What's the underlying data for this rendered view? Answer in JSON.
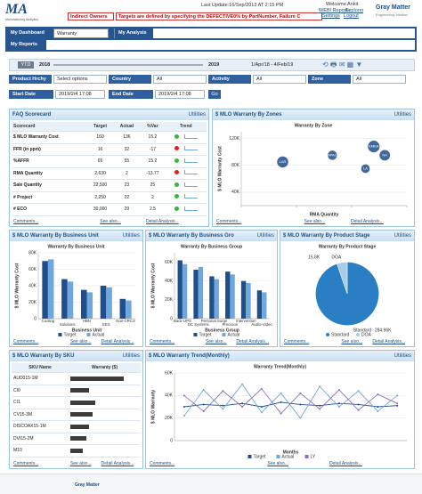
{
  "header": {
    "logo": "MA",
    "logo_sub": "Manufacturing Analytics",
    "alert_label": "Indirect Owners",
    "alert_text": "Targets are defined by specifying the DEFECTIVE0% by PartNumber, Failure C",
    "last_update": "Last Update:16/Sep/2013 AT 2:15 PM",
    "welcome": "Welcome Ankit",
    "links": [
      "WEBI Reports",
      "Explorer",
      "Settings",
      "Logout"
    ],
    "brand": "Gray Matter",
    "brand_sub": "Engineering Intuition"
  },
  "nav": {
    "tabs": [
      "My Dashboard",
      "My Analysis",
      "My Reports"
    ],
    "dropdown": "Warranty"
  },
  "timeline": {
    "preset": "YTD",
    "years": [
      "2018",
      "2019"
    ],
    "range": "1/Apr/18 - 4/Feb/19"
  },
  "filters": [
    {
      "label": "Product Hrchy",
      "value": "Select options"
    },
    {
      "label": "Country",
      "value": "All"
    },
    {
      "label": "Activity",
      "value": "All"
    },
    {
      "label": "Zone",
      "value": "All"
    }
  ],
  "dates": {
    "start_label": "Start Date",
    "start": "2019/2/4 17:08",
    "end_label": "End Date",
    "end": "2019/2/4 17:08",
    "go": "Go"
  },
  "utilities": "Utilities",
  "panel_links": [
    "Comments...",
    "See also...",
    "Detail Analysis..."
  ],
  "panels": [
    "FAQ Scorecard",
    "$ MLO Warranty By Zones",
    "$ MLO Warranty By Business Unit",
    "$ MLO Warranty By Business Gro",
    "$ MLO Warranty By Product Stage",
    "$ MLO Warranty By SKU",
    "$ MLO Warranty Trend(Monthly)"
  ],
  "scorecard": {
    "columns": [
      "Scorecard",
      "Target",
      "Actual",
      "%Var",
      "Trend"
    ],
    "rows": [
      [
        "$ MLO Warranty Cost",
        "160",
        "136",
        "15.2"
      ],
      [
        "FFR (in ppm)",
        "16",
        "32",
        "-17"
      ],
      [
        "%AFFR",
        "65",
        "55",
        "15.2"
      ],
      [
        "RMA Quantity",
        "2,630",
        "2",
        "-13.77"
      ],
      [
        "Sale Quantity",
        "22,500",
        "23",
        "25"
      ],
      [
        "# Project",
        "2,250",
        "22",
        "2"
      ],
      [
        "# ECO",
        "30,000",
        "29",
        "2.5"
      ]
    ],
    "status": [
      "#3cb43c",
      "#e02020",
      "#3cb43c",
      "#e02020",
      "#3cb43c",
      "#3cb43c",
      "#3cb43c"
    ]
  },
  "sku": {
    "columns": [
      "SKU Name",
      "Warranty ($)"
    ],
    "names": [
      "AUD015-1M",
      "CI0",
      "CI1",
      "CV15-3M",
      "DISCOAX15-1M",
      "DVI15-2M",
      "M10"
    ],
    "values": [
      85,
      30,
      40,
      35,
      30,
      25,
      20
    ],
    "xlim": [
      0,
      100
    ],
    "color": "#3c3c3c"
  },
  "chart_data": [
    {
      "type": "bubble",
      "title": "Warranty By Zone",
      "x_label": "RMA Quantity",
      "y_label": "$ MLO Warranty Cost",
      "labels": [
        "LAR",
        "APAC",
        "EMEA",
        "NA",
        "LA"
      ],
      "x": [
        150,
        330,
        480,
        520,
        450
      ],
      "values": [
        85000,
        95000,
        108000,
        95000,
        75000
      ],
      "sizes": [
        20,
        14,
        22,
        18,
        12
      ],
      "color": "#1f4e8c",
      "xlim": [
        0,
        600
      ],
      "xticks": [
        0,
        200,
        400,
        600
      ],
      "ylim": [
        20000,
        130000
      ],
      "yticks": [
        {
          "value": 40000,
          "label": "40K"
        },
        {
          "value": 80000,
          "label": "80K"
        },
        {
          "value": 120000,
          "label": "120K"
        }
      ]
    },
    {
      "type": "bar",
      "title": "Warranty By Business Unit",
      "x_label": "Business Unit",
      "y_label": "$ MLO Warranty Cost",
      "categories": [
        "Cooling",
        "Solutions",
        "HBN",
        "EES",
        "Non-CRCS"
      ],
      "series": [
        {
          "name": "Target",
          "color": "#1f4e8c",
          "values": [
            70000,
            48000,
            35000,
            40000,
            24000
          ]
        },
        {
          "name": "Actual",
          "color": "#6fa8dc",
          "values": [
            72000,
            45000,
            32000,
            38000,
            22000
          ]
        }
      ],
      "ylim": [
        0,
        80000
      ],
      "yticks": [
        0,
        {
          "value": 20000,
          "label": "20K"
        },
        {
          "value": 40000,
          "label": "40K"
        },
        {
          "value": 60000,
          "label": "60K"
        },
        {
          "value": 80000,
          "label": "80K"
        }
      ]
    },
    {
      "type": "bar",
      "title": "Warranty By Business Group",
      "x_label": "Business Group",
      "y_label": "$ MLO Warranty Cost",
      "categories": [
        "Back-UPS",
        "DC Systems",
        "Personal Surge",
        "Precision",
        "Intervention",
        "Audio-Video"
      ],
      "series": [
        {
          "name": "Target",
          "color": "#1f4e8c",
          "values": [
            62000,
            52000,
            45000,
            50000,
            40000,
            30000
          ]
        },
        {
          "name": "Actual",
          "color": "#6fa8dc",
          "values": [
            58000,
            55000,
            42000,
            47000,
            38000,
            28000
          ]
        }
      ],
      "ylim": [
        0,
        70000
      ],
      "yticks": [
        0,
        {
          "value": 20000,
          "label": "20K"
        },
        {
          "value": 40000,
          "label": "40K"
        },
        {
          "value": 60000,
          "label": "60K"
        }
      ]
    },
    {
      "type": "pie",
      "title": "Warranty By Product Stage",
      "categories": [
        "Standard",
        "DOA"
      ],
      "values": [
        284960,
        15800
      ],
      "value_labels": [
        "284.96K",
        "15.8K"
      ],
      "colors": [
        "#2a7fc4",
        "#a8cbe8"
      ]
    },
    {
      "type": "line",
      "title": "Warranty Trend(Monthly)",
      "x_label": "Months",
      "y_label": "$ MLO Warranty",
      "categories": [
        null,
        null,
        null,
        null,
        null,
        null,
        null,
        null,
        null,
        null,
        null,
        null
      ],
      "series": [
        {
          "name": "Target",
          "color": "#1f4e8c",
          "values": [
            30000,
            32000,
            31000,
            33000,
            30000,
            34000,
            32000,
            31000,
            33000,
            32000,
            30000,
            31000
          ]
        },
        {
          "name": "Actual",
          "color": "#6fa8dc",
          "values": [
            22000,
            45000,
            28000,
            50000,
            25000,
            42000,
            20000,
            48000,
            30000,
            44000,
            26000,
            40000
          ]
        },
        {
          "name": "LY",
          "color": "#8c6fc0",
          "values": [
            40000,
            26000,
            44000,
            30000,
            46000,
            24000,
            42000,
            28000,
            45000,
            27000,
            41000,
            33000
          ]
        }
      ],
      "ylim": [
        0,
        60000
      ],
      "yticks": [
        0,
        {
          "value": 20000,
          "label": "20K"
        },
        {
          "value": 40000,
          "label": "40K"
        },
        {
          "value": 60000,
          "label": "60K"
        }
      ]
    }
  ]
}
